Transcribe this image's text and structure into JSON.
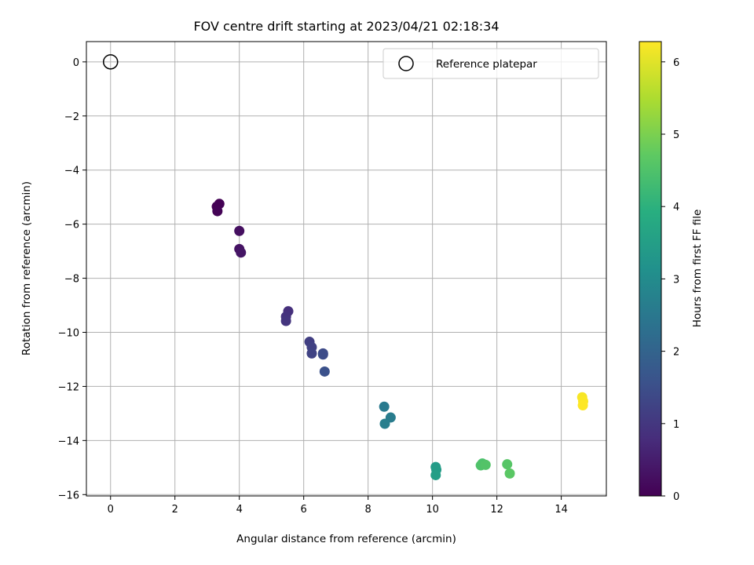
{
  "chart_data": {
    "type": "scatter",
    "title": "FOV centre drift starting at 2023/04/21 02:18:34",
    "xlabel": "Angular distance from reference (arcmin)",
    "ylabel": "Rotation from reference (arcmin)",
    "xlim": [
      -0.75,
      15.4
    ],
    "ylim": [
      -16.05,
      0.75
    ],
    "xticks": [
      "0",
      "2",
      "4",
      "6",
      "8",
      "10",
      "12",
      "14"
    ],
    "yticks": [
      "0",
      "−2",
      "−4",
      "−6",
      "−8",
      "−10",
      "−12",
      "−14",
      "−16"
    ],
    "grid": true,
    "legend": {
      "position": "top-right",
      "entries": [
        "Reference platepar"
      ]
    },
    "reference_point": {
      "x": 0,
      "y": 0,
      "label": "Reference platepar"
    },
    "colorbar": {
      "label": "Hours from first FF file",
      "range": [
        0,
        6.28
      ],
      "ticks": [
        "0",
        "1",
        "2",
        "3",
        "4",
        "5",
        "6"
      ],
      "colormap": "viridis"
    },
    "points": [
      {
        "x": 3.3,
        "y": -5.35,
        "hours": 0.0
      },
      {
        "x": 3.38,
        "y": -5.25,
        "hours": 0.02
      },
      {
        "x": 3.32,
        "y": -5.52,
        "hours": 0.05
      },
      {
        "x": 4.0,
        "y": -6.25,
        "hours": 0.25
      },
      {
        "x": 4.0,
        "y": -6.92,
        "hours": 0.3
      },
      {
        "x": 4.05,
        "y": -7.05,
        "hours": 0.35
      },
      {
        "x": 5.52,
        "y": -9.22,
        "hours": 0.85
      },
      {
        "x": 5.45,
        "y": -9.42,
        "hours": 0.9
      },
      {
        "x": 5.45,
        "y": -9.58,
        "hours": 0.95
      },
      {
        "x": 6.18,
        "y": -10.35,
        "hours": 1.15
      },
      {
        "x": 6.25,
        "y": -10.55,
        "hours": 1.2
      },
      {
        "x": 6.25,
        "y": -10.78,
        "hours": 1.25
      },
      {
        "x": 6.6,
        "y": -10.78,
        "hours": 1.4
      },
      {
        "x": 6.6,
        "y": -10.82,
        "hours": 1.45
      },
      {
        "x": 6.65,
        "y": -11.45,
        "hours": 1.55
      },
      {
        "x": 8.5,
        "y": -12.75,
        "hours": 2.55
      },
      {
        "x": 8.7,
        "y": -13.15,
        "hours": 2.6
      },
      {
        "x": 8.52,
        "y": -13.38,
        "hours": 2.65
      },
      {
        "x": 10.1,
        "y": -14.98,
        "hours": 3.4
      },
      {
        "x": 10.12,
        "y": -15.08,
        "hours": 3.45
      },
      {
        "x": 10.1,
        "y": -15.28,
        "hours": 3.5
      },
      {
        "x": 11.55,
        "y": -14.85,
        "hours": 4.45
      },
      {
        "x": 11.5,
        "y": -14.92,
        "hours": 4.5
      },
      {
        "x": 11.65,
        "y": -14.9,
        "hours": 4.55
      },
      {
        "x": 12.32,
        "y": -14.88,
        "hours": 4.6
      },
      {
        "x": 12.4,
        "y": -15.22,
        "hours": 4.65
      },
      {
        "x": 14.65,
        "y": -12.4,
        "hours": 6.22
      },
      {
        "x": 14.68,
        "y": -12.55,
        "hours": 6.25
      },
      {
        "x": 14.67,
        "y": -12.7,
        "hours": 6.28
      }
    ]
  }
}
